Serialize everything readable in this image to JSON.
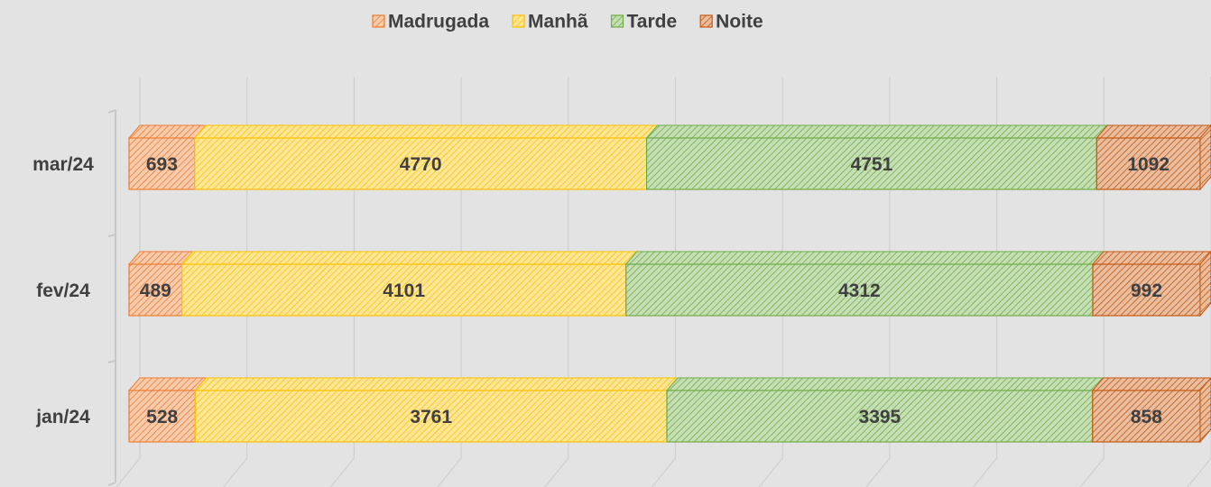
{
  "chart_data": {
    "type": "bar",
    "orientation": "horizontal",
    "stacking": "percent",
    "categories": [
      "jan/24",
      "fev/24",
      "mar/24"
    ],
    "series": [
      {
        "name": "Madrugada",
        "color": "#ed7d31",
        "values": [
          528,
          489,
          693
        ]
      },
      {
        "name": "Manhã",
        "color": "#ffc000",
        "values": [
          3761,
          4101,
          4770
        ]
      },
      {
        "name": "Tarde",
        "color": "#70ad47",
        "values": [
          3395,
          4312,
          4751
        ]
      },
      {
        "name": "Noite",
        "color": "#c55a11",
        "values": [
          858,
          992,
          1092
        ]
      }
    ],
    "xlim": [
      0,
      100
    ],
    "xticks": [
      0,
      10,
      20,
      30,
      40,
      50,
      60,
      70,
      80,
      90,
      100
    ],
    "grid": true,
    "legend": "top"
  }
}
